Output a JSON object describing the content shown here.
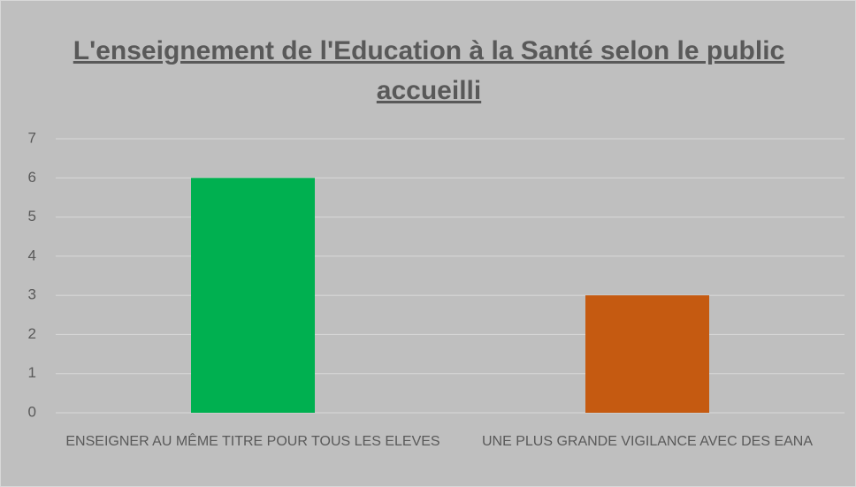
{
  "chart_data": {
    "type": "bar",
    "title": "L'enseignement de l'Education à la Santé selon le public accueilli",
    "categories": [
      "ENSEIGNER AU MÊME TITRE POUR TOUS LES ELEVES",
      "UNE PLUS GRANDE VIGILANCE AVEC DES EANA"
    ],
    "values": [
      6,
      3
    ],
    "colors": [
      "#00b050",
      "#c55a11"
    ],
    "ylim": [
      0,
      7
    ],
    "yticks": [
      0,
      1,
      2,
      3,
      4,
      5,
      6,
      7
    ],
    "grid": true
  }
}
